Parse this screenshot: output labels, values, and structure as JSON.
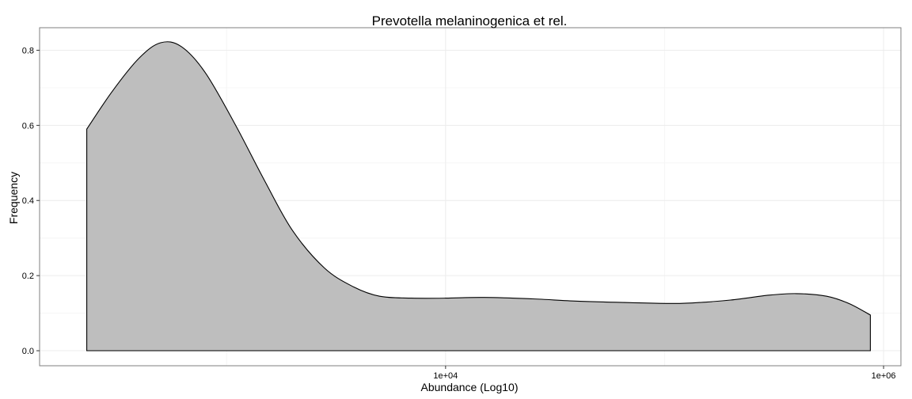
{
  "chart_data": {
    "type": "area",
    "title": "Prevotella melaninogenica et rel.",
    "xlabel": "Abundance (Log10)",
    "ylabel": "Frequency",
    "x_scale": "log10",
    "xlim": [
      140,
      1200000
    ],
    "ylim": [
      -0.04,
      0.86
    ],
    "x_ticks": [
      {
        "value": 10000,
        "label": "1e+04"
      },
      {
        "value": 1000000,
        "label": "1e+06"
      }
    ],
    "y_ticks": [
      {
        "value": 0.0,
        "label": "0.0"
      },
      {
        "value": 0.2,
        "label": "0.2"
      },
      {
        "value": 0.4,
        "label": "0.4"
      },
      {
        "value": 0.6,
        "label": "0.6"
      },
      {
        "value": 0.8,
        "label": "0.8"
      }
    ],
    "grid": true,
    "fill_color": "#bebebe",
    "line_color": "#000000",
    "series": [
      {
        "x": [
          230,
          300,
          400,
          500,
          620,
          800,
          1100,
          1500,
          2000,
          2800,
          3800,
          5000,
          7000,
          10000,
          15000,
          25000,
          40000,
          70000,
          120000,
          200000,
          300000,
          400000,
          550000,
          700000,
          870000
        ],
        "y": [
          0.59,
          0.69,
          0.78,
          0.82,
          0.81,
          0.74,
          0.6,
          0.45,
          0.32,
          0.22,
          0.17,
          0.145,
          0.14,
          0.14,
          0.142,
          0.138,
          0.132,
          0.128,
          0.126,
          0.135,
          0.148,
          0.152,
          0.145,
          0.125,
          0.095
        ]
      }
    ]
  }
}
